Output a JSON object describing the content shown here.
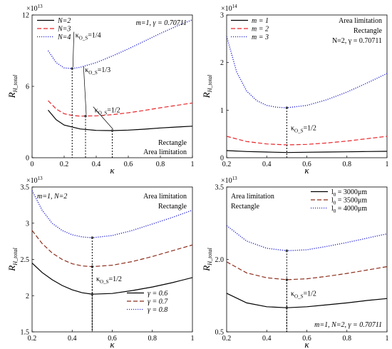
{
  "chart_data": [
    {
      "type": "line",
      "panel": "top-left",
      "exponent": "×10",
      "exponent_power": "13",
      "xlabel": "κ",
      "ylabel": "R",
      "ylabel_sub": "H_total",
      "xlim": [
        0,
        1
      ],
      "ylim": [
        0,
        12
      ],
      "xticks": [
        0,
        0.2,
        0.4,
        0.6,
        0.8,
        1
      ],
      "xtick_labels": [
        "0",
        "0.2",
        "0.4",
        "0.6",
        "0.8",
        "1"
      ],
      "yticks": [
        0,
        6,
        12
      ],
      "ytick_labels": [
        "0",
        "6",
        "12"
      ],
      "params_text": "m=1, γ = 0.70711",
      "notes": [
        "Rectangle",
        "Area limitation"
      ],
      "legend_position": "top-left",
      "series": [
        {
          "name": "N=2",
          "style": "solid",
          "color": "#000000",
          "x": [
            0.1,
            0.15,
            0.2,
            0.3,
            0.4,
            0.5,
            0.6,
            0.7,
            0.8,
            0.9,
            1.0
          ],
          "y": [
            4.0,
            3.2,
            2.75,
            2.42,
            2.3,
            2.28,
            2.32,
            2.4,
            2.5,
            2.58,
            2.65
          ]
        },
        {
          "name": "N=3",
          "style": "dashed",
          "color": "#e8262b",
          "x": [
            0.1,
            0.15,
            0.2,
            0.25,
            0.3,
            0.4,
            0.5,
            0.6,
            0.7,
            0.8,
            0.9,
            1.0
          ],
          "y": [
            4.8,
            4.1,
            3.7,
            3.55,
            3.5,
            3.52,
            3.62,
            3.78,
            3.98,
            4.2,
            4.4,
            4.6
          ]
        },
        {
          "name": "N=4",
          "style": "dotted",
          "color": "#2a2ad8",
          "x": [
            0.1,
            0.15,
            0.2,
            0.25,
            0.3,
            0.4,
            0.5,
            0.6,
            0.7,
            0.8,
            0.9,
            1.0
          ],
          "y": [
            9.0,
            8.0,
            7.55,
            7.5,
            7.6,
            8.0,
            8.55,
            9.15,
            9.8,
            10.45,
            11.05,
            11.6
          ]
        }
      ],
      "markers": [
        {
          "x": 0.25,
          "y": 7.5,
          "label": "κ",
          "label_sub": "O_S",
          "label_suffix": "=1/4"
        },
        {
          "x": 0.3333,
          "y": 3.5,
          "label": "κ",
          "label_sub": "O_S",
          "label_suffix": "=1/3"
        },
        {
          "x": 0.5,
          "y": 2.28,
          "label": "κ",
          "label_sub": "O_S",
          "label_suffix": "=1/2"
        }
      ]
    },
    {
      "type": "line",
      "panel": "top-right",
      "exponent": "×10",
      "exponent_power": "14",
      "xlabel": "κ",
      "ylabel": "R",
      "ylabel_sub": "H_total",
      "xlim": [
        0.2,
        1
      ],
      "ylim": [
        0,
        3
      ],
      "xticks": [
        0.2,
        0.4,
        0.6,
        0.8,
        1
      ],
      "xtick_labels": [
        "0.2",
        "0.4",
        "0.6",
        "0.8",
        "1"
      ],
      "yticks": [
        0,
        1,
        2,
        3
      ],
      "ytick_labels": [
        "0",
        "1",
        "2",
        "3"
      ],
      "notes": [
        "Area limitation",
        "Rectangle",
        "N=2, γ = 0.70711"
      ],
      "legend_position": "top-left",
      "series": [
        {
          "name": "m = 1",
          "style": "solid",
          "color": "#000000",
          "x": [
            0.2,
            0.3,
            0.4,
            0.5,
            0.6,
            0.7,
            0.8,
            0.9,
            1.0
          ],
          "y": [
            0.15,
            0.13,
            0.12,
            0.11,
            0.115,
            0.12,
            0.125,
            0.13,
            0.135
          ]
        },
        {
          "name": "m = 2",
          "style": "dashed",
          "color": "#e8262b",
          "x": [
            0.2,
            0.3,
            0.4,
            0.5,
            0.6,
            0.7,
            0.8,
            0.9,
            1.0
          ],
          "y": [
            0.45,
            0.34,
            0.29,
            0.27,
            0.28,
            0.31,
            0.35,
            0.4,
            0.45
          ]
        },
        {
          "name": "m = 3",
          "style": "dotted",
          "color": "#2a2ad8",
          "x": [
            0.2,
            0.25,
            0.3,
            0.35,
            0.4,
            0.45,
            0.5,
            0.6,
            0.7,
            0.8,
            0.9,
            1.0
          ],
          "y": [
            2.55,
            1.8,
            1.4,
            1.2,
            1.1,
            1.06,
            1.05,
            1.1,
            1.22,
            1.38,
            1.57,
            1.77
          ]
        }
      ],
      "markers": [
        {
          "x": 0.5,
          "y": 1.05,
          "label": "κ",
          "label_sub": "O_S",
          "label_suffix": "=1/2"
        }
      ]
    },
    {
      "type": "line",
      "panel": "bottom-left",
      "exponent": "×10",
      "exponent_power": "13",
      "xlabel": "κ",
      "ylabel": "R",
      "ylabel_sub": "H_total",
      "xlim": [
        0.2,
        1
      ],
      "ylim": [
        1.5,
        3.5
      ],
      "xticks": [
        0.2,
        0.4,
        0.6,
        0.8,
        1
      ],
      "xtick_labels": [
        "0.2",
        "0.4",
        "0.6",
        "0.8",
        "1"
      ],
      "yticks": [
        1.5,
        2,
        2.5,
        3,
        3.5
      ],
      "ytick_labels": [
        "1.5",
        "2",
        "2.5",
        "3",
        "3.5"
      ],
      "params_text": "m=1, N=2",
      "notes": [
        "Area limitation",
        "Rectangle"
      ],
      "legend_position": "bottom-right",
      "series": [
        {
          "name": "γ = 0.6",
          "style": "solid",
          "color": "#000000",
          "x": [
            0.2,
            0.25,
            0.3,
            0.35,
            0.4,
            0.45,
            0.5,
            0.6,
            0.7,
            0.8,
            0.9,
            1.0
          ],
          "y": [
            2.45,
            2.32,
            2.22,
            2.14,
            2.08,
            2.04,
            2.02,
            2.03,
            2.07,
            2.12,
            2.18,
            2.25
          ]
        },
        {
          "name": "γ = 0.7",
          "style": "dashed",
          "color": "#8b2d1c",
          "x": [
            0.2,
            0.25,
            0.3,
            0.35,
            0.4,
            0.45,
            0.5,
            0.6,
            0.7,
            0.8,
            0.9,
            1.0
          ],
          "y": [
            2.9,
            2.72,
            2.59,
            2.5,
            2.44,
            2.41,
            2.4,
            2.42,
            2.47,
            2.54,
            2.62,
            2.7
          ]
        },
        {
          "name": "γ = 0.8",
          "style": "dotted",
          "color": "#2a2ad8",
          "x": [
            0.2,
            0.25,
            0.3,
            0.35,
            0.4,
            0.45,
            0.5,
            0.6,
            0.7,
            0.8,
            0.9,
            1.0
          ],
          "y": [
            3.45,
            3.18,
            3.0,
            2.9,
            2.84,
            2.81,
            2.8,
            2.83,
            2.9,
            2.99,
            3.08,
            3.18
          ]
        }
      ],
      "markers": [
        {
          "x": 0.5,
          "y": 2.02,
          "label": "κ",
          "label_sub": "O_S",
          "label_suffix": "=1/2"
        },
        {
          "x": 0.5,
          "y": 2.4
        },
        {
          "x": 0.5,
          "y": 2.8
        }
      ]
    },
    {
      "type": "line",
      "panel": "bottom-right",
      "exponent": "×10",
      "exponent_power": "13",
      "xlabel": "κ",
      "ylabel": "R",
      "ylabel_sub": "H_total",
      "xlim": [
        0.2,
        1
      ],
      "ylim": [
        0.5,
        3.5
      ],
      "xticks": [
        0.2,
        0.4,
        0.6,
        0.8,
        1
      ],
      "xtick_labels": [
        "0.2",
        "0.4",
        "0.6",
        "0.8",
        "1"
      ],
      "yticks": [
        0.5,
        2.0,
        3.5
      ],
      "ytick_labels": [
        "0.5",
        "2.0",
        "3.5"
      ],
      "params_text": "m=1, N=2, γ = 0.70711",
      "notes": [
        "Area limitation",
        "Rectangle"
      ],
      "legend_position": "top-right",
      "series": [
        {
          "name": "l",
          "name_sub": "0",
          "name_suffix": " = 3000μm",
          "style": "solid",
          "color": "#000000",
          "x": [
            0.2,
            0.3,
            0.4,
            0.5,
            0.6,
            0.7,
            0.8,
            0.9,
            1.0
          ],
          "y": [
            1.3,
            1.1,
            1.02,
            1.0,
            1.02,
            1.06,
            1.1,
            1.15,
            1.19
          ]
        },
        {
          "name": "l",
          "name_sub": "0",
          "name_suffix": " = 3500μm",
          "style": "dashed",
          "color": "#8b2d1c",
          "x": [
            0.2,
            0.3,
            0.4,
            0.5,
            0.6,
            0.7,
            0.8,
            0.9,
            1.0
          ],
          "y": [
            1.95,
            1.72,
            1.62,
            1.58,
            1.6,
            1.65,
            1.71,
            1.78,
            1.85
          ]
        },
        {
          "name": "l",
          "name_sub": "0",
          "name_suffix": " = 4000μm",
          "style": "dotted",
          "color": "#2a2ad8",
          "x": [
            0.2,
            0.3,
            0.4,
            0.5,
            0.6,
            0.7,
            0.8,
            0.9,
            1.0
          ],
          "y": [
            2.7,
            2.38,
            2.23,
            2.18,
            2.2,
            2.27,
            2.35,
            2.44,
            2.53
          ]
        }
      ],
      "markers": [
        {
          "x": 0.5,
          "y": 1.0,
          "label": "κ",
          "label_sub": "O_S",
          "label_suffix": "=1/2"
        },
        {
          "x": 0.5,
          "y": 1.58
        },
        {
          "x": 0.5,
          "y": 2.18
        }
      ]
    }
  ]
}
